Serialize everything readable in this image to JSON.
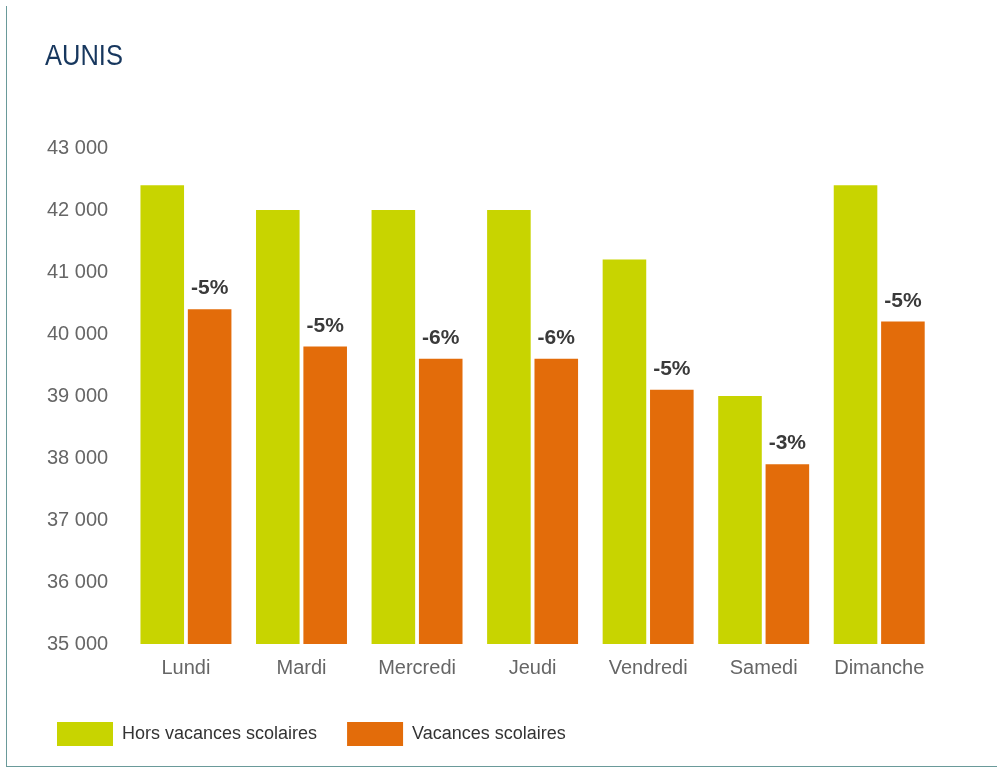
{
  "chart_data": {
    "type": "bar",
    "title": "AUNIS",
    "categories": [
      "Lundi",
      "Mardi",
      "Mercredi",
      "Jeudi",
      "Vendredi",
      "Samedi",
      "Dimanche"
    ],
    "series": [
      {
        "name": "Hors vacances scolaires",
        "color": "#c8d400",
        "values": [
          42400,
          42000,
          42000,
          42000,
          41200,
          39000,
          42400
        ]
      },
      {
        "name": "Vacances scolaires",
        "color": "#e36c0a",
        "values": [
          40400,
          39800,
          39600,
          39600,
          39100,
          37900,
          40200
        ]
      }
    ],
    "annotations": [
      {
        "text": "-5%",
        "x": "Lundi",
        "y": 40400
      },
      {
        "text": "-5%",
        "x": "Mardi",
        "y": 39800
      },
      {
        "text": "-6%",
        "x": "Mercredi",
        "y": 39600
      },
      {
        "text": "-6%",
        "x": "Jeudi",
        "y": 39600
      },
      {
        "text": "-5%",
        "x": "Vendredi",
        "y": 39100
      },
      {
        "text": "-3%",
        "x": "Samedi",
        "y": 37900
      },
      {
        "text": "-5%",
        "x": "Dimanche",
        "y": 40200
      }
    ],
    "ylim": [
      35000,
      43000
    ],
    "yticks": [
      {
        "value": 35000,
        "label": "35 000"
      },
      {
        "value": 36000,
        "label": "36 000"
      },
      {
        "value": 37000,
        "label": "37 000"
      },
      {
        "value": 38000,
        "label": "38 000"
      },
      {
        "value": 39000,
        "label": "39 000"
      },
      {
        "value": 40000,
        "label": "40 000"
      },
      {
        "value": 41000,
        "label": "41 000"
      },
      {
        "value": 42000,
        "label": "42 000"
      },
      {
        "value": 43000,
        "label": "43 000"
      }
    ],
    "grid": false,
    "legend": "bottom"
  }
}
